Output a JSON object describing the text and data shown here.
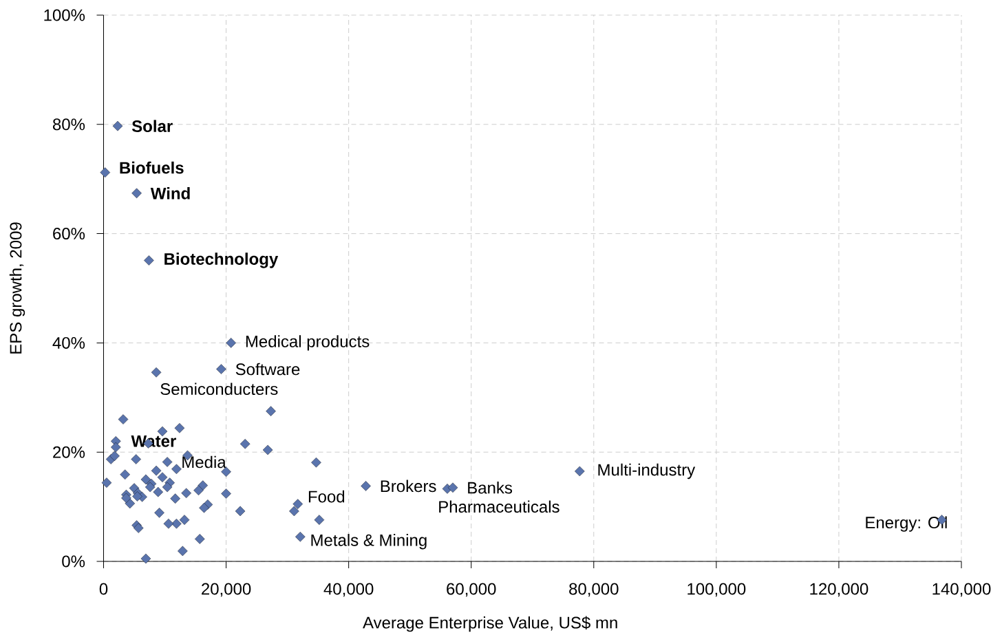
{
  "chart_data": {
    "type": "scatter",
    "xlabel": "Average Enterprise Value, US$ mn",
    "ylabel": "EPS growth, 2009",
    "x": [
      2300,
      250,
      5400,
      7400,
      20800,
      19200,
      8600,
      3200,
      27300,
      9600,
      12400,
      2000,
      2000,
      7300,
      23100,
      26800,
      1200,
      1800,
      5300,
      10400,
      13700,
      34700,
      11900,
      8600,
      20000,
      3500,
      9600,
      500,
      6900,
      7800,
      10800,
      5000,
      7600,
      10400,
      16200,
      15500,
      8900,
      5600,
      3700,
      6300,
      5500,
      13500,
      20000,
      11700,
      4300,
      3700,
      17000,
      16400,
      22300,
      9100,
      31700,
      31100,
      35200,
      13200,
      11900,
      10600,
      5400,
      5700,
      15700,
      32100,
      12900,
      6900,
      42800,
      56100,
      57000,
      77700,
      136800
    ],
    "values": [
      79.7,
      71.2,
      67.4,
      55.1,
      40.0,
      35.2,
      34.6,
      26.0,
      27.5,
      23.8,
      24.4,
      22.0,
      20.9,
      21.6,
      21.5,
      20.4,
      18.7,
      19.3,
      18.7,
      18.2,
      19.4,
      18.1,
      16.9,
      16.6,
      16.4,
      15.9,
      15.4,
      14.4,
      15.0,
      14.2,
      14.4,
      13.4,
      13.6,
      13.6,
      13.9,
      13.0,
      12.7,
      12.5,
      12.2,
      11.8,
      11.9,
      12.5,
      12.4,
      11.5,
      10.6,
      11.6,
      10.4,
      9.8,
      9.2,
      8.9,
      10.5,
      9.2,
      7.6,
      7.6,
      6.9,
      6.9,
      6.6,
      6.1,
      4.1,
      4.5,
      1.9,
      0.5,
      13.8,
      13.3,
      13.5,
      16.5,
      7.6
    ],
    "color": "#5a74ad",
    "marker": "diamond",
    "grid": true,
    "xlim": [
      0,
      140000
    ],
    "ylim": [
      0,
      100
    ],
    "xticks": [
      0,
      {
        "value": 20000,
        "label": "20,000"
      },
      {
        "value": 40000,
        "label": "40,000"
      },
      {
        "value": 60000,
        "label": "60,000"
      },
      {
        "value": 80000,
        "label": "80,000"
      },
      {
        "value": 100000,
        "label": "100,000"
      },
      {
        "value": 120000,
        "label": "120,000"
      },
      {
        "value": 140000,
        "label": "140,000"
      }
    ],
    "yticks": [
      {
        "value": 0,
        "label": "0%"
      },
      {
        "value": 20,
        "label": "20%"
      },
      {
        "value": 40,
        "label": "40%"
      },
      {
        "value": 60,
        "label": "60%"
      },
      {
        "value": 80,
        "label": "80%"
      },
      {
        "value": 100,
        "label": "100%"
      }
    ],
    "annotations": [
      {
        "text": "**Solar**",
        "x": 2300,
        "y": 79.7
      },
      {
        "text": "**Biofuels**",
        "x": 250,
        "y": 71.2
      },
      {
        "text": "**Wind**",
        "x": 5400,
        "y": 67.4
      },
      {
        "text": "**Biotechnology**",
        "x": 7400,
        "y": 55.1
      },
      {
        "text": "Medical products",
        "x": 20800,
        "y": 40.0
      },
      {
        "text": "Software",
        "x": 19200,
        "y": 35.2
      },
      {
        "text": "Semiconducters",
        "x": 8600,
        "y": 34.6
      },
      {
        "text": "**Water**",
        "x": 2000,
        "y": 22.0
      },
      {
        "text": "Media",
        "x": 10400,
        "y": 18.2
      },
      {
        "text": "Food",
        "x": 31700,
        "y": 10.5
      },
      {
        "text": "Metals & Mining",
        "x": 32100,
        "y": 4.5
      },
      {
        "text": "Brokers",
        "x": 42800,
        "y": 13.8
      },
      {
        "text": "Banks",
        "x": 57000,
        "y": 13.5
      },
      {
        "text": "Pharmaceuticals",
        "x": 56100,
        "y": 13.3
      },
      {
        "text": "Multi-industry",
        "x": 77700,
        "y": 16.5
      },
      {
        "text": "Energy: Oil",
        "x": 136800,
        "y": 7.6
      }
    ]
  }
}
